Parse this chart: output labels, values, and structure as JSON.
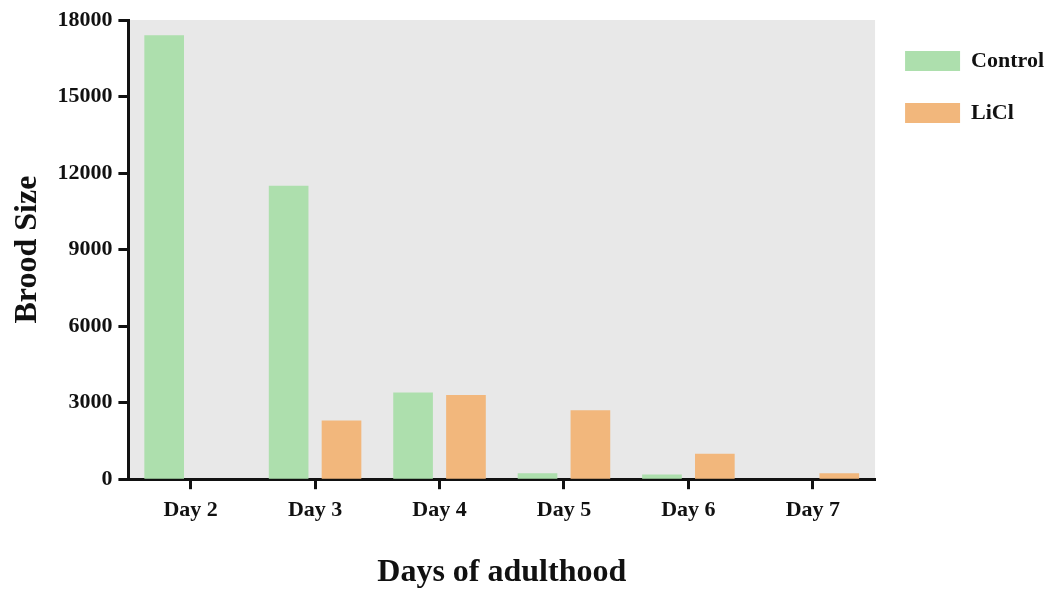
{
  "chart_data": {
    "type": "bar",
    "xlabel": "Days of adulthood",
    "ylabel": "Brood Size",
    "categories": [
      "Day 2",
      "Day 3",
      "Day 4",
      "Day 5",
      "Day 6",
      "Day 7"
    ],
    "series": [
      {
        "name": "Control",
        "color": "#addfad",
        "values": [
          17400,
          11500,
          3400,
          230,
          180,
          0
        ]
      },
      {
        "name": "LiCl",
        "color": "#f2b77c",
        "values": [
          0,
          2300,
          3300,
          2700,
          1000,
          230
        ]
      }
    ],
    "ylim": [
      0,
      18000
    ],
    "yticks": [
      0,
      3000,
      6000,
      9000,
      12000,
      15000,
      18000
    ],
    "grid": false,
    "legend": "top right"
  }
}
